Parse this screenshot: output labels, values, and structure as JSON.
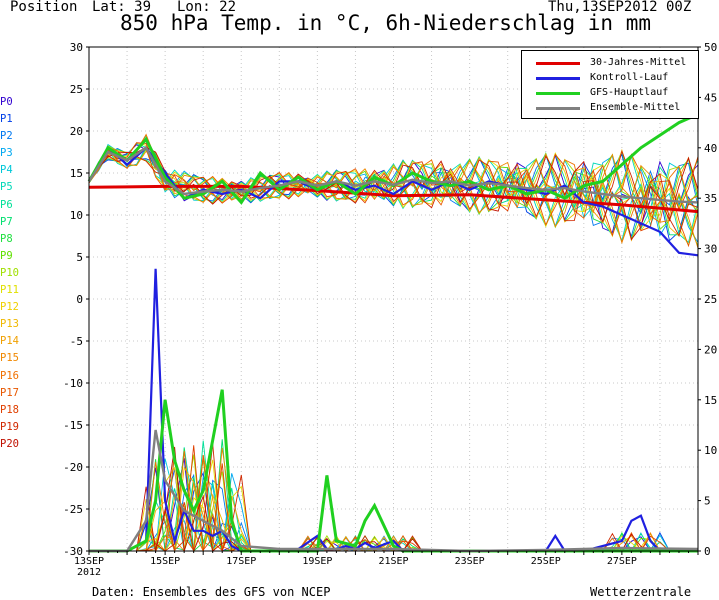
{
  "header": {
    "position_label": "Position",
    "lat": "Lat: 39",
    "lon": "Lon: 22",
    "run": "Thu,13SEP2012 00Z",
    "title": "850 hPa Temp. in °C, 6h-Niederschlag in mm"
  },
  "footer": {
    "source": "Daten: Ensembles des GFS von NCEP",
    "brand": "Wetterzentrale"
  },
  "members": [
    {
      "name": "P0",
      "color": "#3000d0"
    },
    {
      "name": "P1",
      "color": "#0040e8"
    },
    {
      "name": "P2",
      "color": "#0078f0"
    },
    {
      "name": "P3",
      "color": "#00a8f0"
    },
    {
      "name": "P4",
      "color": "#00c8d8"
    },
    {
      "name": "P5",
      "color": "#00d8b8"
    },
    {
      "name": "P6",
      "color": "#00e098"
    },
    {
      "name": "P7",
      "color": "#00e070"
    },
    {
      "name": "P8",
      "color": "#20e040"
    },
    {
      "name": "P9",
      "color": "#60e000"
    },
    {
      "name": "P10",
      "color": "#a0e000"
    },
    {
      "name": "P11",
      "color": "#e0e000"
    },
    {
      "name": "P12",
      "color": "#f0d000"
    },
    {
      "name": "P13",
      "color": "#f0b800"
    },
    {
      "name": "P14",
      "color": "#f0a000"
    },
    {
      "name": "P15",
      "color": "#f08800"
    },
    {
      "name": "P16",
      "color": "#f07000"
    },
    {
      "name": "P17",
      "color": "#e85800"
    },
    {
      "name": "P18",
      "color": "#e04000"
    },
    {
      "name": "P19",
      "color": "#d02800"
    },
    {
      "name": "P20",
      "color": "#c01000"
    }
  ],
  "chart_data": {
    "type": "line",
    "title": "850 hPa Temp. in °C, 6h-Niederschlag in mm",
    "x_range_days": [
      0,
      16
    ],
    "x_ticks": [
      {
        "day": 0,
        "label": "13SEP",
        "sub": "2012"
      },
      {
        "day": 2,
        "label": "15SEP"
      },
      {
        "day": 4,
        "label": "17SEP"
      },
      {
        "day": 6,
        "label": "19SEP"
      },
      {
        "day": 8,
        "label": "21SEP"
      },
      {
        "day": 10,
        "label": "23SEP"
      },
      {
        "day": 12,
        "label": "25SEP"
      },
      {
        "day": 14,
        "label": "27SEP"
      }
    ],
    "y_left": {
      "min": -30,
      "max": 30,
      "step": 5,
      "unit": "°C"
    },
    "y_right": {
      "min": 0,
      "max": 50,
      "step": 5,
      "unit": "mm"
    },
    "grid": true,
    "legend_position": "top-right",
    "legend": [
      {
        "name": "30-Jahres-Mittel",
        "color": "#e00000"
      },
      {
        "name": "Kontroll-Lauf",
        "color": "#2020e0"
      },
      {
        "name": "GFS-Hauptlauf",
        "color": "#20d020"
      },
      {
        "name": "Ensemble-Mittel",
        "color": "#808080"
      }
    ],
    "temperature_series": [
      {
        "name": "30-Jahres-Mittel",
        "color": "#e00000",
        "x": [
          0,
          2,
          4,
          6,
          8,
          10,
          12,
          14,
          16
        ],
        "values": [
          13.3,
          13.4,
          13.4,
          12.9,
          12.3,
          12.4,
          11.8,
          11.2,
          10.4
        ]
      },
      {
        "name": "Kontroll-Lauf",
        "color": "#2020e0",
        "x": [
          0,
          0.5,
          1,
          1.5,
          2,
          2.5,
          3,
          3.5,
          4,
          4.5,
          5,
          5.5,
          6,
          6.5,
          7,
          7.5,
          8,
          8.5,
          9,
          9.5,
          10,
          10.5,
          11,
          11.5,
          12,
          12.5,
          13,
          13.5,
          14,
          14.5,
          15,
          15.5,
          16
        ],
        "values": [
          14,
          18,
          16,
          18,
          15,
          12,
          13,
          12.5,
          13,
          12,
          14,
          14,
          13,
          14,
          13,
          13.5,
          12.5,
          14,
          13,
          14,
          13,
          14,
          13.5,
          13,
          12.5,
          13.5,
          11.5,
          11,
          10,
          9,
          8,
          5.5,
          5.2
        ]
      },
      {
        "name": "GFS-Hauptlauf",
        "color": "#20d020",
        "x": [
          0,
          0.5,
          1,
          1.5,
          2,
          2.5,
          3,
          3.5,
          4,
          4.5,
          5,
          5.5,
          6,
          6.5,
          7,
          7.5,
          8,
          8.5,
          9,
          9.5,
          10,
          10.5,
          11,
          11.5,
          12,
          12.5,
          13,
          13.5,
          14,
          14.5,
          15,
          15.5,
          16
        ],
        "values": [
          14,
          18,
          16.5,
          19,
          14.5,
          12,
          12.5,
          14,
          11.5,
          15,
          13,
          14.5,
          13,
          14,
          12.5,
          14.5,
          13.5,
          15,
          14,
          13.5,
          14,
          13,
          13.5,
          12.5,
          13,
          12,
          13.5,
          14,
          16,
          18,
          19.5,
          21,
          22
        ]
      },
      {
        "name": "Ensemble-Mittel",
        "color": "#808080",
        "x": [
          0,
          0.5,
          1,
          1.5,
          2,
          2.5,
          3,
          3.5,
          4,
          4.5,
          5,
          5.5,
          6,
          6.5,
          7,
          7.5,
          8,
          8.5,
          9,
          9.5,
          10,
          10.5,
          11,
          11.5,
          12,
          12.5,
          13,
          13.5,
          14,
          14.5,
          15,
          15.5,
          16
        ],
        "values": [
          14,
          17.5,
          16.5,
          18,
          14,
          12.5,
          12.8,
          13,
          12.8,
          13.2,
          13.5,
          14,
          13.5,
          14,
          13.5,
          14,
          13.6,
          14.2,
          13.8,
          14,
          13.5,
          13.8,
          13.5,
          13.2,
          13,
          13.2,
          12.8,
          12.5,
          12.2,
          12,
          11.8,
          11.6,
          11.5
        ]
      }
    ],
    "precipitation_series": [
      {
        "name": "Kontroll-Lauf",
        "color": "#2020e0",
        "x": [
          0,
          1,
          1.5,
          1.75,
          2,
          2.25,
          2.5,
          2.75,
          3,
          3.25,
          3.5,
          3.75,
          4,
          5,
          5.5,
          6,
          6.25,
          6.5,
          6.75,
          7,
          7.25,
          7.5,
          8,
          8.25,
          9,
          12,
          12.25,
          12.5,
          13,
          14,
          14.25,
          14.5,
          14.75,
          15,
          16
        ],
        "values": [
          0,
          0,
          1,
          28,
          5,
          1,
          4,
          2,
          2,
          1.5,
          2,
          0.5,
          0,
          0,
          0.2,
          1.5,
          0.2,
          0.2,
          0.5,
          0.2,
          0.8,
          0.3,
          1,
          0,
          0,
          0,
          1.5,
          0,
          0,
          1,
          3,
          3.5,
          1,
          0,
          0
        ]
      },
      {
        "name": "GFS-Hauptlauf",
        "color": "#20d020",
        "x": [
          0,
          1,
          1.5,
          1.75,
          2,
          2.25,
          2.5,
          2.75,
          3,
          3.25,
          3.5,
          3.75,
          4,
          5,
          6,
          6.25,
          6.5,
          7,
          7.25,
          7.5,
          8,
          8.25,
          9,
          16
        ],
        "values": [
          0,
          0,
          1,
          5,
          15,
          9,
          6,
          4,
          6,
          11,
          16,
          3,
          0,
          0,
          0,
          7.5,
          1,
          0.5,
          3,
          4.5,
          0.5,
          0,
          0,
          0
        ]
      },
      {
        "name": "Ensemble-Mittel",
        "color": "#808080",
        "x": [
          0,
          1,
          1.5,
          1.75,
          2,
          2.5,
          3,
          3.5,
          4,
          5,
          6,
          8,
          10,
          12,
          14,
          16
        ],
        "values": [
          0,
          0,
          3,
          12,
          7,
          4,
          3,
          2,
          0.5,
          0.2,
          0.2,
          0.2,
          0,
          0.1,
          0.3,
          0.2
        ]
      }
    ],
    "member_temperature_anchors": {
      "x": [
        0,
        0.5,
        1,
        1.5,
        2,
        3,
        4,
        5,
        6,
        7,
        8,
        9,
        10,
        11,
        12,
        13,
        14,
        15,
        16
      ],
      "base": [
        14,
        17.5,
        16.5,
        18,
        14,
        13,
        12.8,
        13.5,
        13.5,
        13.5,
        13.6,
        13.8,
        13.5,
        13.5,
        13,
        12.8,
        12.2,
        11.8,
        11.5
      ],
      "spread": [
        0.3,
        1,
        1,
        1.5,
        2,
        1.5,
        1.5,
        1.5,
        1.5,
        2,
        2.5,
        3,
        3,
        3.5,
        4,
        4.5,
        5,
        5,
        5
      ]
    }
  }
}
